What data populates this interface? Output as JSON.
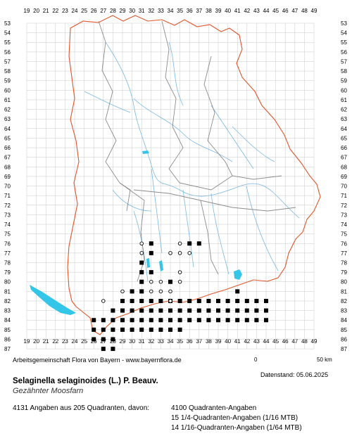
{
  "map": {
    "x_labels": [
      "19",
      "20",
      "21",
      "22",
      "23",
      "24",
      "25",
      "26",
      "27",
      "28",
      "29",
      "30",
      "31",
      "32",
      "33",
      "34",
      "35",
      "36",
      "37",
      "38",
      "39",
      "40",
      "41",
      "42",
      "43",
      "44",
      "45",
      "46",
      "47",
      "48",
      "49"
    ],
    "y_labels": [
      "53",
      "54",
      "55",
      "56",
      "57",
      "58",
      "59",
      "60",
      "61",
      "62",
      "63",
      "64",
      "65",
      "66",
      "67",
      "68",
      "69",
      "70",
      "71",
      "72",
      "73",
      "74",
      "75",
      "76",
      "77",
      "78",
      "79",
      "80",
      "81",
      "82",
      "83",
      "84",
      "85",
      "86",
      "87"
    ],
    "colors": {
      "grid": "#c8c8c8",
      "border": "#e0562a",
      "district": "#8c8c8c",
      "river": "#7ab8e0",
      "lake": "#33c6e8",
      "marker": "#000000"
    },
    "occurrences": [
      {
        "x": 31,
        "y": 76,
        "m": "o"
      },
      {
        "x": 32,
        "y": 76,
        "m": "s"
      },
      {
        "x": 31,
        "y": 77,
        "m": "o"
      },
      {
        "x": 32,
        "y": 77,
        "m": "s"
      },
      {
        "x": 31,
        "y": 78,
        "m": "s"
      },
      {
        "x": 31,
        "y": 79,
        "m": "s"
      },
      {
        "x": 32,
        "y": 79,
        "m": "s"
      },
      {
        "x": 31,
        "y": 80,
        "m": "s"
      },
      {
        "x": 32,
        "y": 80,
        "m": "o"
      },
      {
        "x": 30,
        "y": 81,
        "m": "s"
      },
      {
        "x": 31,
        "y": 81,
        "m": "s"
      },
      {
        "x": 32,
        "y": 81,
        "m": "o"
      },
      {
        "x": 34,
        "y": 77,
        "m": "o"
      },
      {
        "x": 35,
        "y": 77,
        "m": "o"
      },
      {
        "x": 35,
        "y": 76,
        "m": "o"
      },
      {
        "x": 36,
        "y": 76,
        "m": "s"
      },
      {
        "x": 36,
        "y": 77,
        "m": "o"
      },
      {
        "x": 37,
        "y": 76,
        "m": "s"
      },
      {
        "x": 35,
        "y": 79,
        "m": "o"
      },
      {
        "x": 34,
        "y": 80,
        "m": "s"
      },
      {
        "x": 35,
        "y": 80,
        "m": "o"
      },
      {
        "x": 33,
        "y": 80,
        "m": "o"
      },
      {
        "x": 41,
        "y": 81,
        "m": "s"
      },
      {
        "x": 27,
        "y": 82,
        "m": "o"
      },
      {
        "x": 29,
        "y": 81,
        "m": "o"
      },
      {
        "x": 33,
        "y": 81,
        "m": "o"
      },
      {
        "x": 34,
        "y": 81,
        "m": "o"
      },
      {
        "x": 34,
        "y": 82,
        "m": "o"
      }
    ],
    "bands": [
      {
        "y": 82,
        "from": 29,
        "to": 44
      },
      {
        "y": 83,
        "from": 28,
        "to": 44
      },
      {
        "y": 84,
        "from": 26,
        "to": 44
      },
      {
        "y": 85,
        "from": 26,
        "to": 35
      },
      {
        "y": 86,
        "from": 26,
        "to": 28
      },
      {
        "y": 87,
        "from": 27,
        "to": 28
      }
    ]
  },
  "footer": {
    "credit": "Arbeitsgemeinschaft Flora von Bayern - www.bayernflora.de",
    "scale_start": "0",
    "scale_end": "50 km",
    "date": "Datenstand: 05.06.2025",
    "scientific_name": "Selaginella selaginoides (L.) P. Beauv.",
    "common_name": "Gezähnter Moosfarn",
    "stats_total": "4131 Angaben aus 205 Quadranten, davon:",
    "stats_1": "4100 Quadranten-Angaben",
    "stats_2": "15 1/4-Quadranten-Angaben (1/16 MTB)",
    "stats_3": "14 1/16-Quadranten-Angaben (1/64 MTB)"
  }
}
